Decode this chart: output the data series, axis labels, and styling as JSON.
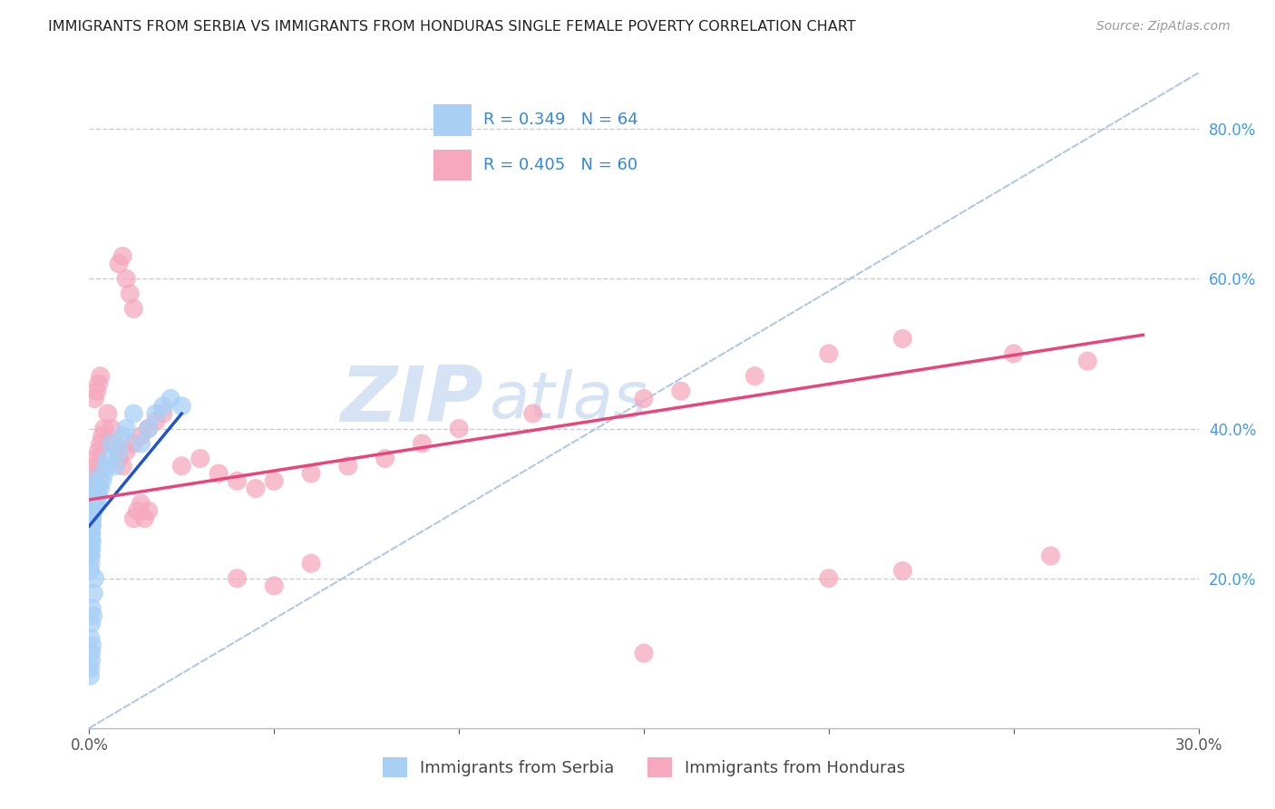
{
  "title": "IMMIGRANTS FROM SERBIA VS IMMIGRANTS FROM HONDURAS SINGLE FEMALE POVERTY CORRELATION CHART",
  "source": "Source: ZipAtlas.com",
  "ylabel": "Single Female Poverty",
  "xlim": [
    0.0,
    0.3
  ],
  "ylim": [
    0.0,
    0.875
  ],
  "serbia_R": 0.349,
  "serbia_N": 64,
  "honduras_R": 0.405,
  "honduras_N": 60,
  "serbia_color": "#A8D0F5",
  "honduras_color": "#F5A8BE",
  "serbia_line_color": "#2255CC",
  "honduras_line_color": "#E8457A",
  "ref_line_color": "#B0C8E8",
  "watermark_color": "#C5D8F0",
  "background_color": "#FFFFFF",
  "grid_color": "#CCCCCC",
  "serbia_line_x0": 0.0,
  "serbia_line_x1": 0.025,
  "serbia_line_y0": 0.27,
  "serbia_line_y1": 0.42,
  "honduras_line_x0": 0.0,
  "honduras_line_x1": 0.285,
  "honduras_line_y0": 0.305,
  "honduras_line_y1": 0.525,
  "serbia_x": [
    0.0003,
    0.0005,
    0.0008,
    0.0004,
    0.0006,
    0.0007,
    0.0003,
    0.0005,
    0.0004,
    0.0006,
    0.0008,
    0.0003,
    0.0005,
    0.0007,
    0.0004,
    0.0006,
    0.0008,
    0.0003,
    0.0005,
    0.0004,
    0.0006,
    0.0007,
    0.0003,
    0.0005,
    0.0004,
    0.0006,
    0.0008,
    0.0003,
    0.0005,
    0.0007,
    0.0012,
    0.0015,
    0.0018,
    0.002,
    0.0022,
    0.0025,
    0.003,
    0.0035,
    0.004,
    0.0045,
    0.005,
    0.006,
    0.007,
    0.008,
    0.009,
    0.01,
    0.012,
    0.014,
    0.016,
    0.018,
    0.02,
    0.022,
    0.025,
    0.0003,
    0.0005,
    0.0004,
    0.0006,
    0.0007,
    0.0003,
    0.0005,
    0.0008,
    0.001,
    0.0012,
    0.0015
  ],
  "serbia_y": [
    0.29,
    0.31,
    0.28,
    0.3,
    0.32,
    0.27,
    0.33,
    0.26,
    0.25,
    0.28,
    0.3,
    0.24,
    0.27,
    0.29,
    0.26,
    0.28,
    0.31,
    0.25,
    0.27,
    0.24,
    0.26,
    0.28,
    0.23,
    0.25,
    0.22,
    0.24,
    0.27,
    0.21,
    0.23,
    0.25,
    0.29,
    0.3,
    0.31,
    0.3,
    0.32,
    0.31,
    0.32,
    0.33,
    0.34,
    0.35,
    0.36,
    0.38,
    0.35,
    0.37,
    0.39,
    0.4,
    0.42,
    0.38,
    0.4,
    0.42,
    0.43,
    0.44,
    0.43,
    0.08,
    0.1,
    0.12,
    0.14,
    0.16,
    0.07,
    0.09,
    0.11,
    0.15,
    0.18,
    0.2
  ],
  "honduras_x": [
    0.0008,
    0.0012,
    0.0015,
    0.0018,
    0.002,
    0.0025,
    0.003,
    0.0035,
    0.004,
    0.005,
    0.006,
    0.007,
    0.008,
    0.009,
    0.01,
    0.012,
    0.014,
    0.016,
    0.018,
    0.02,
    0.008,
    0.009,
    0.01,
    0.011,
    0.012,
    0.025,
    0.03,
    0.035,
    0.04,
    0.045,
    0.05,
    0.06,
    0.07,
    0.08,
    0.09,
    0.1,
    0.12,
    0.15,
    0.16,
    0.18,
    0.2,
    0.22,
    0.25,
    0.27,
    0.0015,
    0.002,
    0.0025,
    0.003,
    0.012,
    0.013,
    0.014,
    0.015,
    0.016,
    0.04,
    0.05,
    0.06,
    0.15,
    0.2,
    0.22,
    0.26
  ],
  "honduras_y": [
    0.31,
    0.33,
    0.34,
    0.35,
    0.36,
    0.37,
    0.38,
    0.39,
    0.4,
    0.42,
    0.4,
    0.38,
    0.36,
    0.35,
    0.37,
    0.38,
    0.39,
    0.4,
    0.41,
    0.42,
    0.62,
    0.63,
    0.6,
    0.58,
    0.56,
    0.35,
    0.36,
    0.34,
    0.33,
    0.32,
    0.33,
    0.34,
    0.35,
    0.36,
    0.38,
    0.4,
    0.42,
    0.44,
    0.45,
    0.47,
    0.5,
    0.52,
    0.5,
    0.49,
    0.44,
    0.45,
    0.46,
    0.47,
    0.28,
    0.29,
    0.3,
    0.28,
    0.29,
    0.2,
    0.19,
    0.22,
    0.1,
    0.2,
    0.21,
    0.23
  ],
  "watermark": "ZIPAtlas",
  "legend_box_color": "#FFFFFF",
  "legend_border_color": "#CCCCCC"
}
